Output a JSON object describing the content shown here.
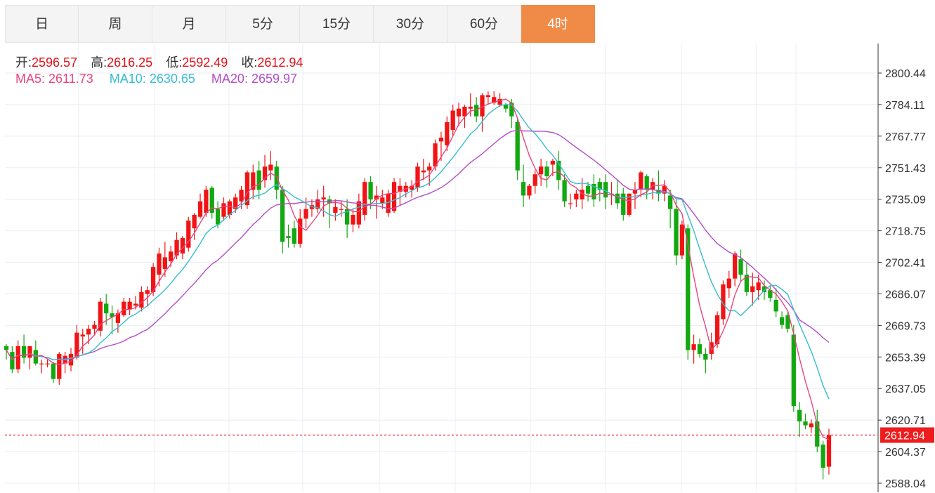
{
  "tabs": [
    {
      "label": "日"
    },
    {
      "label": "周"
    },
    {
      "label": "月"
    },
    {
      "label": "5分"
    },
    {
      "label": "15分"
    },
    {
      "label": "30分"
    },
    {
      "label": "60分"
    },
    {
      "label": "4时",
      "active": true
    }
  ],
  "info": {
    "open_label": "开:",
    "open": "2596.57",
    "high_label": "高:",
    "high": "2616.25",
    "low_label": "低:",
    "low": "2592.49",
    "close_label": "收:",
    "close": "2612.94",
    "ma5_label": "MA5:",
    "ma5": "2611.73",
    "ma10_label": "MA10:",
    "ma10": "2630.65",
    "ma20_label": "MA20:",
    "ma20": "2659.97"
  },
  "colors": {
    "up": "#f21414",
    "down": "#12a80f",
    "ma5": "#e8457f",
    "ma10": "#36bdd0",
    "ma20": "#b24ec6",
    "last_price": "#ee1c1c",
    "active_tab": "#f08a47"
  },
  "chart_data": {
    "type": "candlestick",
    "y_ticks": [
      "2800.44",
      "2784.11",
      "2767.77",
      "2751.43",
      "2735.09",
      "2718.75",
      "2702.41",
      "2686.07",
      "2669.73",
      "2653.39",
      "2637.05",
      "2620.71",
      "2604.37",
      "2588.04"
    ],
    "ylim": [
      2586,
      2804
    ],
    "last_price": "2612.94",
    "ohlc": [
      [
        2659,
        2660,
        2652,
        2657
      ],
      [
        2656,
        2659,
        2645,
        2647
      ],
      [
        2647,
        2662,
        2645,
        2659
      ],
      [
        2659,
        2665,
        2650,
        2653
      ],
      [
        2653,
        2659,
        2647,
        2659
      ],
      [
        2657,
        2662,
        2649,
        2650
      ],
      [
        2650,
        2652,
        2645,
        2650
      ],
      [
        2650,
        2652,
        2648,
        2650
      ],
      [
        2650,
        2651,
        2640,
        2642
      ],
      [
        2642,
        2656,
        2639,
        2655
      ],
      [
        2650,
        2656,
        2645,
        2654
      ],
      [
        2649,
        2658,
        2646,
        2655
      ],
      [
        2653,
        2670,
        2652,
        2666
      ],
      [
        2664,
        2668,
        2655,
        2665
      ],
      [
        2665,
        2670,
        2660,
        2668
      ],
      [
        2668,
        2672,
        2665,
        2670
      ],
      [
        2667,
        2684,
        2664,
        2682
      ],
      [
        2681,
        2686,
        2670,
        2676
      ],
      [
        2676,
        2680,
        2665,
        2674
      ],
      [
        2671,
        2678,
        2666,
        2676
      ],
      [
        2675,
        2684,
        2674,
        2682
      ],
      [
        2678,
        2684,
        2675,
        2682
      ],
      [
        2680,
        2685,
        2678,
        2681
      ],
      [
        2679,
        2690,
        2677,
        2687
      ],
      [
        2686,
        2690,
        2680,
        2688
      ],
      [
        2687,
        2702,
        2685,
        2700
      ],
      [
        2696,
        2710,
        2690,
        2707
      ],
      [
        2699,
        2713,
        2695,
        2705
      ],
      [
        2703,
        2711,
        2700,
        2708
      ],
      [
        2706,
        2718,
        2704,
        2714
      ],
      [
        2707,
        2716,
        2704,
        2715
      ],
      [
        2710,
        2726,
        2708,
        2724
      ],
      [
        2720,
        2728,
        2714,
        2727
      ],
      [
        2726,
        2738,
        2725,
        2734
      ],
      [
        2728,
        2742,
        2726,
        2740
      ],
      [
        2741,
        2742,
        2725,
        2728
      ],
      [
        2730,
        2734,
        2720,
        2722
      ],
      [
        2726,
        2736,
        2724,
        2733
      ],
      [
        2727,
        2735,
        2725,
        2734
      ],
      [
        2730,
        2738,
        2728,
        2736
      ],
      [
        2734,
        2742,
        2730,
        2740
      ],
      [
        2732,
        2750,
        2730,
        2749
      ],
      [
        2740,
        2753,
        2735,
        2749
      ],
      [
        2750,
        2755,
        2735,
        2740
      ],
      [
        2745,
        2758,
        2741,
        2752
      ],
      [
        2750,
        2760,
        2745,
        2753
      ],
      [
        2752,
        2755,
        2735,
        2740
      ],
      [
        2740,
        2742,
        2707,
        2713
      ],
      [
        2716,
        2722,
        2710,
        2715
      ],
      [
        2720,
        2724,
        2710,
        2712
      ],
      [
        2712,
        2730,
        2710,
        2725
      ],
      [
        2725,
        2736,
        2720,
        2730
      ],
      [
        2730,
        2735,
        2726,
        2732
      ],
      [
        2730,
        2740,
        2728,
        2735
      ],
      [
        2735,
        2742,
        2726,
        2736
      ],
      [
        2735,
        2737,
        2720,
        2733
      ],
      [
        2728,
        2735,
        2724,
        2731
      ],
      [
        2730,
        2734,
        2726,
        2730
      ],
      [
        2730,
        2735,
        2715,
        2722
      ],
      [
        2722,
        2730,
        2718,
        2727
      ],
      [
        2722,
        2738,
        2720,
        2734
      ],
      [
        2727,
        2746,
        2724,
        2744
      ],
      [
        2744,
        2747,
        2730,
        2735
      ],
      [
        2735,
        2742,
        2725,
        2737
      ],
      [
        2733,
        2740,
        2730,
        2736
      ],
      [
        2728,
        2740,
        2726,
        2738
      ],
      [
        2729,
        2746,
        2728,
        2744
      ],
      [
        2739,
        2746,
        2732,
        2742
      ],
      [
        2739,
        2744,
        2736,
        2742
      ],
      [
        2740,
        2745,
        2736,
        2742
      ],
      [
        2741,
        2754,
        2739,
        2752
      ],
      [
        2749,
        2756,
        2745,
        2750
      ],
      [
        2750,
        2754,
        2742,
        2752
      ],
      [
        2752,
        2766,
        2750,
        2764
      ],
      [
        2765,
        2770,
        2755,
        2767
      ],
      [
        2763,
        2778,
        2760,
        2775
      ],
      [
        2771,
        2784,
        2768,
        2781
      ],
      [
        2778,
        2785,
        2773,
        2782
      ],
      [
        2778,
        2784,
        2772,
        2783
      ],
      [
        2782,
        2790,
        2778,
        2783
      ],
      [
        2784,
        2788,
        2775,
        2778
      ],
      [
        2778,
        2790,
        2770,
        2789
      ],
      [
        2788,
        2791,
        2784,
        2789
      ],
      [
        2785,
        2791,
        2784,
        2788
      ],
      [
        2784,
        2790,
        2783,
        2787
      ],
      [
        2784,
        2785,
        2780,
        2782
      ],
      [
        2785,
        2787,
        2772,
        2778
      ],
      [
        2775,
        2777,
        2745,
        2750
      ],
      [
        2744,
        2753,
        2731,
        2737
      ],
      [
        2737,
        2743,
        2735,
        2742
      ],
      [
        2742,
        2750,
        2738,
        2748
      ],
      [
        2748,
        2756,
        2742,
        2752
      ],
      [
        2752,
        2755,
        2741,
        2747
      ],
      [
        2753,
        2756,
        2747,
        2755
      ],
      [
        2755,
        2760,
        2740,
        2745
      ],
      [
        2745,
        2748,
        2731,
        2734
      ],
      [
        2733,
        2738,
        2730,
        2733
      ],
      [
        2735,
        2740,
        2731,
        2738
      ],
      [
        2735,
        2746,
        2730,
        2740
      ],
      [
        2742,
        2744,
        2734,
        2738
      ],
      [
        2743,
        2748,
        2731,
        2735
      ],
      [
        2744,
        2746,
        2734,
        2740
      ],
      [
        2744,
        2748,
        2730,
        2736
      ],
      [
        2738,
        2744,
        2732,
        2738
      ],
      [
        2738,
        2745,
        2730,
        2733
      ],
      [
        2738,
        2741,
        2724,
        2727
      ],
      [
        2727,
        2738,
        2726,
        2738
      ],
      [
        2738,
        2744,
        2730,
        2740
      ],
      [
        2740,
        2750,
        2736,
        2749
      ],
      [
        2747,
        2748,
        2735,
        2740
      ],
      [
        2740,
        2746,
        2735,
        2744
      ],
      [
        2740,
        2750,
        2734,
        2738
      ],
      [
        2738,
        2745,
        2734,
        2742
      ],
      [
        2737,
        2740,
        2720,
        2730
      ],
      [
        2730,
        2735,
        2701,
        2706
      ],
      [
        2706,
        2724,
        2704,
        2722
      ],
      [
        2720,
        2722,
        2652,
        2657
      ],
      [
        2657,
        2665,
        2650,
        2660
      ],
      [
        2660,
        2663,
        2653,
        2655
      ],
      [
        2655,
        2658,
        2645,
        2652
      ],
      [
        2655,
        2666,
        2652,
        2661
      ],
      [
        2660,
        2677,
        2658,
        2675
      ],
      [
        2673,
        2693,
        2670,
        2691
      ],
      [
        2689,
        2698,
        2684,
        2694
      ],
      [
        2694,
        2708,
        2690,
        2707
      ],
      [
        2704,
        2709,
        2692,
        2696
      ],
      [
        2696,
        2702,
        2685,
        2687
      ],
      [
        2687,
        2697,
        2680,
        2690
      ],
      [
        2688,
        2696,
        2683,
        2692
      ],
      [
        2690,
        2693,
        2683,
        2687
      ],
      [
        2688,
        2690,
        2682,
        2684
      ],
      [
        2683,
        2689,
        2674,
        2677
      ],
      [
        2674,
        2677,
        2668,
        2670
      ],
      [
        2675,
        2677,
        2666,
        2668
      ],
      [
        2665,
        2670,
        2625,
        2628
      ],
      [
        2626,
        2630,
        2612,
        2620
      ],
      [
        2620,
        2624,
        2616,
        2618
      ],
      [
        2617,
        2621,
        2614,
        2619
      ],
      [
        2620,
        2626,
        2604,
        2607
      ],
      [
        2608,
        2610,
        2590,
        2596
      ],
      [
        2596.57,
        2616.25,
        2592.49,
        2612.94
      ]
    ]
  }
}
